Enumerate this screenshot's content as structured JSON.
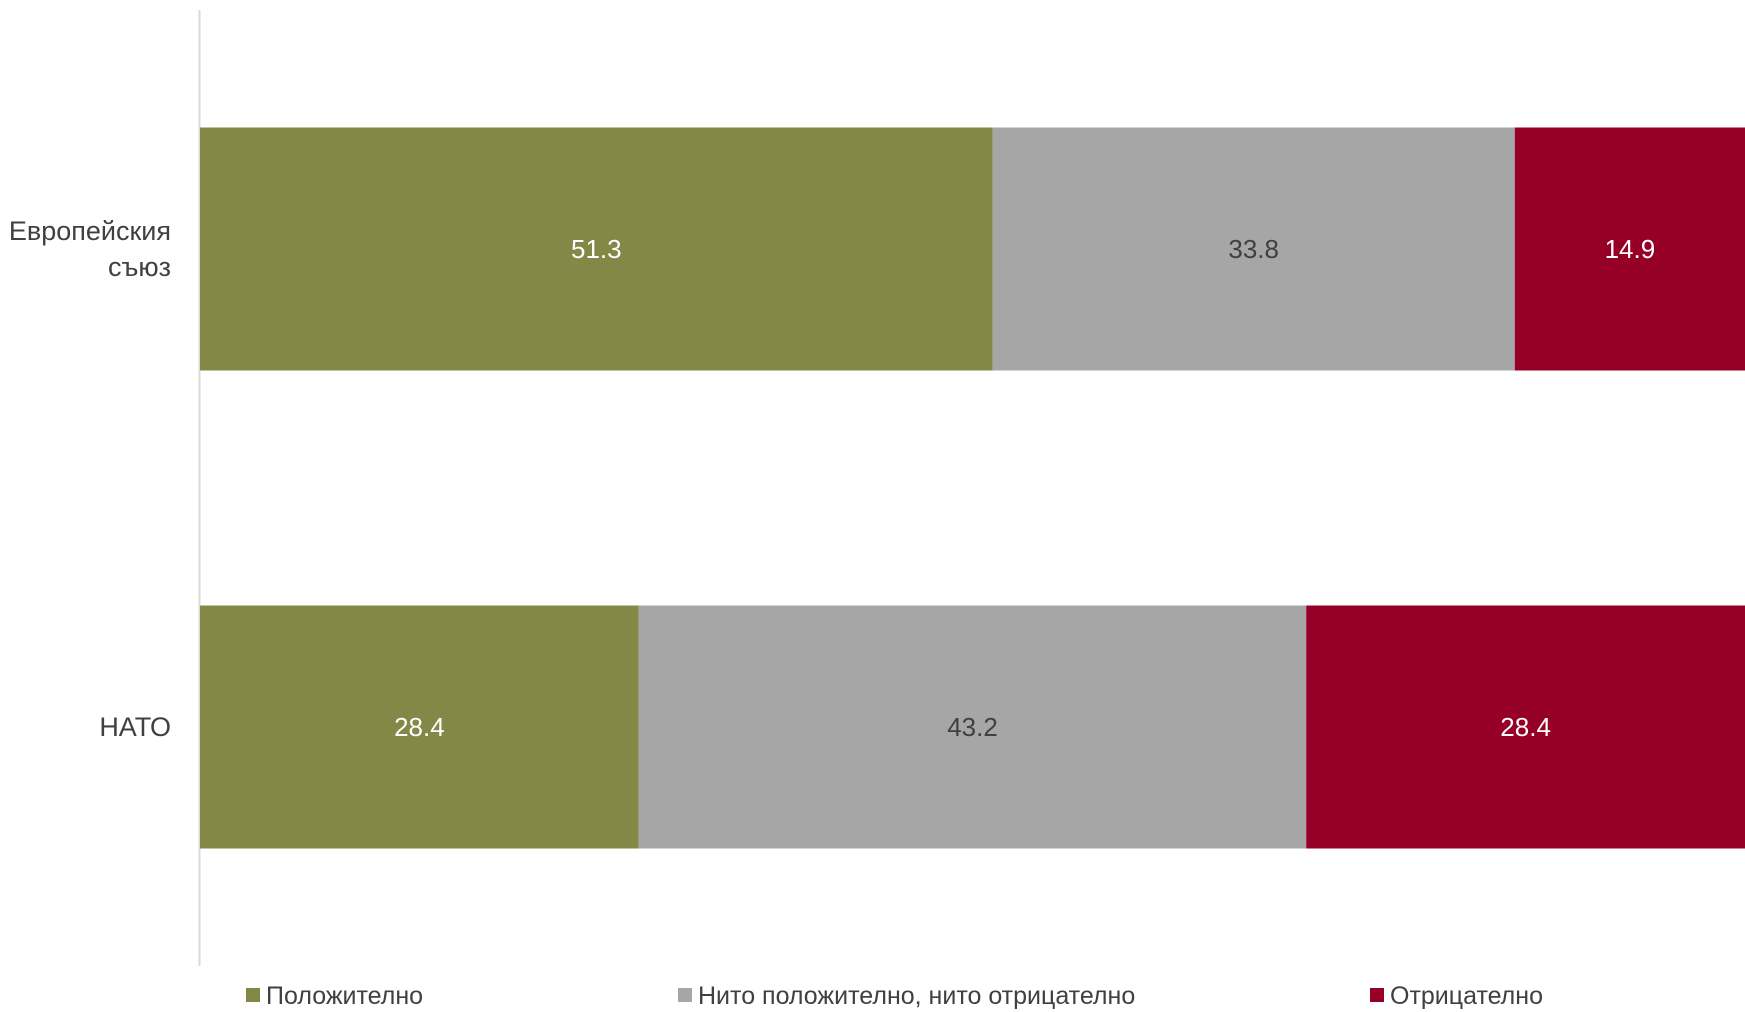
{
  "chart_data": {
    "type": "bar",
    "orientation": "horizontal",
    "stacked": "percent",
    "categories": [
      "Европейския съюз",
      "НАТО"
    ],
    "category_label_lines": [
      [
        "Европейския",
        "съюз"
      ],
      [
        "НАТО"
      ]
    ],
    "series": [
      {
        "name": "Положително",
        "values": [
          51.3,
          28.4
        ],
        "color": "#838847",
        "label_color": "#ffffff"
      },
      {
        "name": "Нито положително, нито отрицателно",
        "values": [
          33.8,
          43.2
        ],
        "color": "#a6a6a6",
        "label_color": "#404040"
      },
      {
        "name": "Отрицателно",
        "values": [
          14.9,
          28.4
        ],
        "color": "#960027",
        "label_color": "#ffffff"
      }
    ],
    "xlim": [
      0,
      100
    ],
    "grid": false,
    "legend_position": "bottom",
    "title": "",
    "xlabel": "",
    "ylabel": ""
  }
}
